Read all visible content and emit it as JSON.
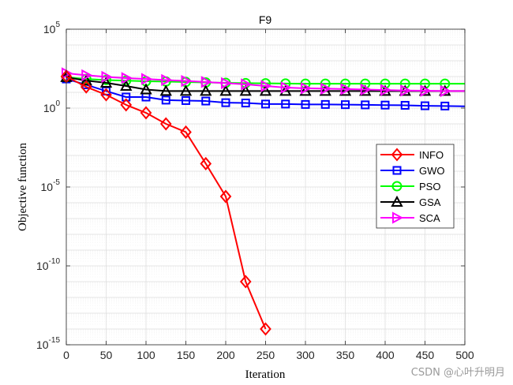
{
  "chart_data": {
    "type": "line",
    "title": "F9",
    "xlabel": "Iteration",
    "ylabel": "Objective function",
    "xlim": [
      0,
      500
    ],
    "ylim_log10": [
      -15,
      5
    ],
    "yscale": "log",
    "grid": true,
    "legend_placement": "center-right",
    "x_ticks": [
      0,
      50,
      100,
      150,
      200,
      250,
      300,
      350,
      400,
      450,
      500
    ],
    "y_tick_exponents": [
      5,
      0,
      -5,
      -10,
      -15
    ],
    "y_tick_base": "10",
    "series": [
      {
        "name": "INFO",
        "color": "#ff0000",
        "marker": "diamond",
        "points": [
          [
            0,
            102
          ],
          [
            25,
            22
          ],
          [
            50,
            7
          ],
          [
            75,
            1.6
          ],
          [
            100,
            0.5
          ],
          [
            125,
            0.1
          ],
          [
            150,
            0.03
          ],
          [
            175,
            0.0003
          ],
          [
            200,
            2.5e-06
          ],
          [
            225,
            1e-11
          ],
          [
            250,
            1e-14
          ]
        ]
      },
      {
        "name": "GWO",
        "color": "#0000ff",
        "marker": "square",
        "points": [
          [
            0,
            70
          ],
          [
            25,
            30
          ],
          [
            50,
            12
          ],
          [
            75,
            5
          ],
          [
            100,
            5
          ],
          [
            125,
            3.2
          ],
          [
            150,
            3
          ],
          [
            175,
            2.8
          ],
          [
            200,
            2.2
          ],
          [
            225,
            2.1
          ],
          [
            250,
            1.8
          ],
          [
            275,
            1.8
          ],
          [
            300,
            1.7
          ],
          [
            325,
            1.7
          ],
          [
            350,
            1.65
          ],
          [
            375,
            1.6
          ],
          [
            400,
            1.55
          ],
          [
            425,
            1.5
          ],
          [
            450,
            1.4
          ],
          [
            475,
            1.35
          ],
          [
            500,
            1.3
          ]
        ]
      },
      {
        "name": "PSO",
        "color": "#00ff00",
        "marker": "circle",
        "points": [
          [
            0,
            90
          ],
          [
            25,
            70
          ],
          [
            50,
            60
          ],
          [
            75,
            55
          ],
          [
            100,
            50
          ],
          [
            125,
            48
          ],
          [
            150,
            45
          ],
          [
            175,
            42
          ],
          [
            200,
            40
          ],
          [
            225,
            38
          ],
          [
            250,
            37
          ],
          [
            275,
            36
          ],
          [
            300,
            35
          ],
          [
            325,
            35
          ],
          [
            350,
            35
          ],
          [
            375,
            35
          ],
          [
            400,
            35
          ],
          [
            425,
            35
          ],
          [
            450,
            35
          ],
          [
            475,
            35
          ],
          [
            500,
            35
          ]
        ]
      },
      {
        "name": "GSA",
        "color": "#000000",
        "marker": "triangle-up",
        "points": [
          [
            0,
            90
          ],
          [
            25,
            55
          ],
          [
            50,
            40
          ],
          [
            75,
            25
          ],
          [
            100,
            15
          ],
          [
            125,
            12
          ],
          [
            150,
            12
          ],
          [
            175,
            12
          ],
          [
            200,
            12
          ],
          [
            225,
            12
          ],
          [
            250,
            12
          ],
          [
            275,
            12
          ],
          [
            300,
            12
          ],
          [
            325,
            12
          ],
          [
            350,
            12
          ],
          [
            375,
            12
          ],
          [
            400,
            12
          ],
          [
            425,
            12
          ],
          [
            450,
            12
          ],
          [
            475,
            12
          ],
          [
            500,
            12
          ]
        ]
      },
      {
        "name": "SCA",
        "color": "#ff00ff",
        "marker": "triangle-right",
        "points": [
          [
            0,
            160
          ],
          [
            25,
            120
          ],
          [
            50,
            95
          ],
          [
            75,
            80
          ],
          [
            100,
            70
          ],
          [
            125,
            60
          ],
          [
            150,
            52
          ],
          [
            175,
            45
          ],
          [
            200,
            38
          ],
          [
            225,
            32
          ],
          [
            250,
            25
          ],
          [
            275,
            20
          ],
          [
            300,
            18
          ],
          [
            325,
            17
          ],
          [
            350,
            16
          ],
          [
            375,
            15
          ],
          [
            400,
            14
          ],
          [
            425,
            13
          ],
          [
            450,
            12.5
          ],
          [
            475,
            12
          ],
          [
            500,
            12
          ]
        ]
      }
    ]
  },
  "watermark": "CSDN @心叶升明月"
}
